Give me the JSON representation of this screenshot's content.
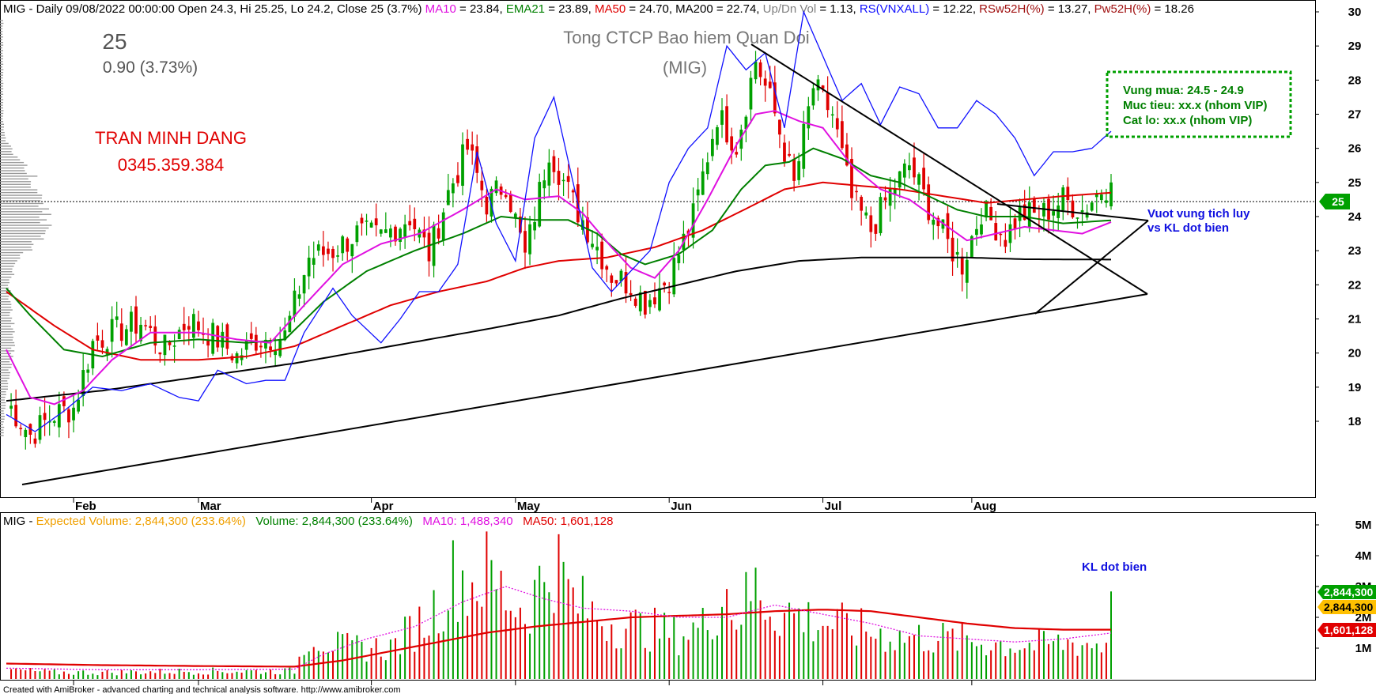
{
  "header": {
    "segments": [
      {
        "text": "MIG - Daily 09/08/2022 00:00:00 Open 24.3, Hi 25.25, Lo 24.2, Close 25 (3.7%) ",
        "color": "#000000"
      },
      {
        "text": "MA10",
        "color": "#e010e0"
      },
      {
        "text": " = 23.84, ",
        "color": "#000000"
      },
      {
        "text": "EMA21",
        "color": "#008000"
      },
      {
        "text": " = 23.89, ",
        "color": "#000000"
      },
      {
        "text": "MA50",
        "color": "#e00000"
      },
      {
        "text": " = 24.70, MA200 = 22.74, ",
        "color": "#000000"
      },
      {
        "text": "Up/Dn Vol",
        "color": "#808080"
      },
      {
        "text": " = 1.13, ",
        "color": "#000000"
      },
      {
        "text": "RS(VNXALL)",
        "color": "#1010ff"
      },
      {
        "text": " = 12.22, ",
        "color": "#000000"
      },
      {
        "text": "RSw52H(%)",
        "color": "#a01010"
      },
      {
        "text": " = 13.27, ",
        "color": "#000000"
      },
      {
        "text": "Pw52H(%)",
        "color": "#a01010"
      },
      {
        "text": " = 18.26",
        "color": "#000000"
      }
    ]
  },
  "price_block": {
    "price": "25",
    "change": "0.90 (3.73%)"
  },
  "company": {
    "name": "Tong CTCP Bao hiem Quan Doi",
    "ticker": "(MIG)"
  },
  "author": {
    "name": "TRAN MINH DANG",
    "phone": "0345.359.384"
  },
  "trade_box": {
    "buy_zone": "Vung mua: 24.5 - 24.9",
    "target": "Muc tieu: xx.x (nhom VIP)",
    "stop_loss": "Cat lo: xx.x (nhom VIP)"
  },
  "annotations": {
    "breakout_line1": "Vuot vung tich luy",
    "breakout_line2": "vs KL dot bien",
    "volume_note": "KL dot bien"
  },
  "price_tag": "25",
  "volume_header": {
    "segments": [
      {
        "text": "MIG - ",
        "color": "#000000"
      },
      {
        "text": "Expected Volume: 2,844,300 (233.64%)",
        "color": "#f0a000"
      },
      {
        "text": "   ",
        "color": "#000000"
      },
      {
        "text": "Volume: 2,844,300 (233.64%)",
        "color": "#008000"
      },
      {
        "text": "   ",
        "color": "#000000"
      },
      {
        "text": "MA10: 1,488,340",
        "color": "#e010e0"
      },
      {
        "text": "   ",
        "color": "#000000"
      },
      {
        "text": "MA50: 1,601,128",
        "color": "#e00000"
      }
    ]
  },
  "volume_tags": [
    {
      "label": "2,844,300",
      "bg": "#00a000",
      "fg": "#ffffff"
    },
    {
      "label": "2,844,300",
      "bg": "#ffc000",
      "fg": "#000000"
    },
    {
      "label": "1,601,128",
      "bg": "#e00000",
      "fg": "#ffffff"
    }
  ],
  "footer": "Created with AmiBroker - advanced charting and technical analysis software. http://www.amibroker.com",
  "colors": {
    "up": "#00a000",
    "down": "#e00000",
    "ma10": "#e010e0",
    "ema21": "#008000",
    "ma50": "#e00000",
    "ma200": "#000000",
    "rs": "#1010ff",
    "vol_ma10": "#e010e0"
  },
  "chart_data": {
    "type": "candlestick",
    "y_ticks": [
      "18",
      "19",
      "20",
      "21",
      "22",
      "23",
      "24",
      "25",
      "26",
      "27",
      "28",
      "29",
      "30"
    ],
    "ylim": [
      17.4,
      30.3
    ],
    "x_month_labels": [
      "Feb",
      "Mar",
      "Apr",
      "May",
      "Jun",
      "Jul",
      "Aug"
    ],
    "last_close": 25,
    "volume_y_ticks": [
      "1M",
      "2M",
      "3M",
      "4M",
      "5M"
    ],
    "volume_ylim": [
      0,
      5.0
    ],
    "volume_unit": "M",
    "keypoints": {
      "close": [
        [
          0,
          18.6
        ],
        [
          5,
          17.6
        ],
        [
          10,
          18.2
        ],
        [
          14,
          18.4
        ],
        [
          18,
          20.3
        ],
        [
          22,
          20.6
        ],
        [
          28,
          20.9
        ],
        [
          33,
          20.1
        ],
        [
          38,
          21.0
        ],
        [
          44,
          20.4
        ],
        [
          48,
          19.9
        ],
        [
          52,
          20.4
        ],
        [
          58,
          20.5
        ],
        [
          63,
          22.8
        ],
        [
          68,
          23.0
        ],
        [
          73,
          23.5
        ],
        [
          78,
          23.4
        ],
        [
          84,
          24.0
        ],
        [
          88,
          22.9
        ],
        [
          92,
          24.7
        ],
        [
          96,
          26.0
        ],
        [
          100,
          24.4
        ],
        [
          104,
          25.0
        ],
        [
          108,
          22.8
        ],
        [
          113,
          26.0
        ],
        [
          118,
          24.4
        ],
        [
          122,
          23.4
        ],
        [
          126,
          22.3
        ],
        [
          130,
          22.0
        ],
        [
          133,
          21.5
        ],
        [
          138,
          22.2
        ],
        [
          143,
          24.0
        ],
        [
          148,
          27.0
        ],
        [
          152,
          26.1
        ],
        [
          156,
          28.6
        ],
        [
          160,
          27.0
        ],
        [
          164,
          24.9
        ],
        [
          168,
          27.8
        ],
        [
          172,
          27.0
        ],
        [
          176,
          24.5
        ],
        [
          180,
          23.6
        ],
        [
          184,
          24.7
        ],
        [
          188,
          25.5
        ],
        [
          192,
          24.3
        ],
        [
          196,
          23.2
        ],
        [
          199,
          22.6
        ],
        [
          203,
          24.2
        ],
        [
          208,
          23.4
        ],
        [
          211,
          24.1
        ],
        [
          215,
          24.0
        ],
        [
          220,
          24.5
        ],
        [
          224,
          24.2
        ],
        [
          228,
          24.8
        ],
        [
          230,
          25.0
        ]
      ],
      "ma10": [
        [
          0,
          20.1
        ],
        [
          5,
          18.7
        ],
        [
          10,
          18.5
        ],
        [
          16,
          18.9
        ],
        [
          22,
          19.8
        ],
        [
          30,
          20.6
        ],
        [
          40,
          20.6
        ],
        [
          48,
          20.4
        ],
        [
          55,
          20.3
        ],
        [
          62,
          21.4
        ],
        [
          70,
          22.6
        ],
        [
          78,
          23.2
        ],
        [
          86,
          23.5
        ],
        [
          95,
          24.2
        ],
        [
          102,
          24.8
        ],
        [
          108,
          24.5
        ],
        [
          115,
          24.6
        ],
        [
          120,
          24.1
        ],
        [
          126,
          23.1
        ],
        [
          130,
          22.5
        ],
        [
          135,
          22.2
        ],
        [
          140,
          23.0
        ],
        [
          146,
          24.5
        ],
        [
          152,
          26.1
        ],
        [
          156,
          27.0
        ],
        [
          160,
          27.1
        ],
        [
          165,
          26.8
        ],
        [
          170,
          26.6
        ],
        [
          176,
          25.5
        ],
        [
          182,
          24.8
        ],
        [
          188,
          24.5
        ],
        [
          195,
          23.8
        ],
        [
          200,
          23.3
        ],
        [
          206,
          23.5
        ],
        [
          212,
          23.7
        ],
        [
          218,
          23.6
        ],
        [
          224,
          23.5
        ],
        [
          230,
          23.84
        ]
      ],
      "ema21": [
        [
          0,
          21.9
        ],
        [
          5,
          21.1
        ],
        [
          12,
          20.1
        ],
        [
          20,
          19.9
        ],
        [
          30,
          20.3
        ],
        [
          40,
          20.4
        ],
        [
          50,
          20.3
        ],
        [
          58,
          20.4
        ],
        [
          66,
          21.5
        ],
        [
          75,
          22.4
        ],
        [
          85,
          23.0
        ],
        [
          95,
          23.5
        ],
        [
          103,
          24.0
        ],
        [
          110,
          23.9
        ],
        [
          117,
          23.9
        ],
        [
          123,
          23.5
        ],
        [
          128,
          22.9
        ],
        [
          133,
          22.6
        ],
        [
          140,
          22.9
        ],
        [
          147,
          23.6
        ],
        [
          153,
          24.8
        ],
        [
          158,
          25.5
        ],
        [
          163,
          25.6
        ],
        [
          168,
          26.0
        ],
        [
          174,
          25.7
        ],
        [
          180,
          25.2
        ],
        [
          186,
          25.0
        ],
        [
          192,
          24.6
        ],
        [
          198,
          24.2
        ],
        [
          204,
          24.0
        ],
        [
          212,
          24.0
        ],
        [
          220,
          23.8
        ],
        [
          230,
          23.89
        ]
      ],
      "ma50": [
        [
          0,
          21.8
        ],
        [
          10,
          20.8
        ],
        [
          18,
          20.1
        ],
        [
          28,
          19.8
        ],
        [
          40,
          19.8
        ],
        [
          50,
          19.9
        ],
        [
          60,
          20.2
        ],
        [
          70,
          20.8
        ],
        [
          80,
          21.4
        ],
        [
          90,
          21.8
        ],
        [
          100,
          22.1
        ],
        [
          108,
          22.5
        ],
        [
          115,
          22.7
        ],
        [
          125,
          22.8
        ],
        [
          135,
          23.1
        ],
        [
          145,
          23.6
        ],
        [
          155,
          24.3
        ],
        [
          162,
          24.8
        ],
        [
          170,
          25.0
        ],
        [
          178,
          24.9
        ],
        [
          186,
          24.8
        ],
        [
          195,
          24.6
        ],
        [
          204,
          24.4
        ],
        [
          212,
          24.5
        ],
        [
          220,
          24.6
        ],
        [
          230,
          24.7
        ]
      ],
      "ma200": [
        [
          0,
          18.6
        ],
        [
          20,
          18.9
        ],
        [
          40,
          19.3
        ],
        [
          60,
          19.7
        ],
        [
          80,
          20.2
        ],
        [
          100,
          20.7
        ],
        [
          115,
          21.1
        ],
        [
          128,
          21.6
        ],
        [
          140,
          22.0
        ],
        [
          152,
          22.4
        ],
        [
          165,
          22.7
        ],
        [
          178,
          22.8
        ],
        [
          190,
          22.8
        ],
        [
          200,
          22.8
        ],
        [
          212,
          22.75
        ],
        [
          230,
          22.74
        ]
      ],
      "rs": [
        [
          0,
          18.2
        ],
        [
          6,
          17.7
        ],
        [
          12,
          18.3
        ],
        [
          18,
          19.0
        ],
        [
          24,
          18.9
        ],
        [
          30,
          19.1
        ],
        [
          36,
          18.7
        ],
        [
          40,
          18.6
        ],
        [
          44,
          19.5
        ],
        [
          50,
          19.1
        ],
        [
          54,
          19.2
        ],
        [
          58,
          19.2
        ],
        [
          62,
          20.6
        ],
        [
          68,
          21.9
        ],
        [
          72,
          21.1
        ],
        [
          78,
          20.3
        ],
        [
          82,
          21.0
        ],
        [
          86,
          21.8
        ],
        [
          90,
          21.8
        ],
        [
          94,
          22.6
        ],
        [
          98,
          25.9
        ],
        [
          102,
          23.8
        ],
        [
          106,
          22.7
        ],
        [
          110,
          26.3
        ],
        [
          114,
          27.5
        ],
        [
          118,
          25.0
        ],
        [
          122,
          22.5
        ],
        [
          126,
          21.8
        ],
        [
          130,
          22.4
        ],
        [
          134,
          23.0
        ],
        [
          138,
          25.0
        ],
        [
          142,
          26.0
        ],
        [
          146,
          26.6
        ],
        [
          150,
          29.0
        ],
        [
          154,
          28.3
        ],
        [
          158,
          28.8
        ],
        [
          162,
          26.6
        ],
        [
          166,
          30.0
        ],
        [
          170,
          28.7
        ],
        [
          174,
          27.4
        ],
        [
          178,
          27.9
        ],
        [
          182,
          26.7
        ],
        [
          186,
          27.8
        ],
        [
          190,
          27.6
        ],
        [
          194,
          26.6
        ],
        [
          198,
          26.6
        ],
        [
          202,
          27.4
        ],
        [
          206,
          27.0
        ],
        [
          210,
          26.3
        ],
        [
          214,
          25.2
        ],
        [
          218,
          25.9
        ],
        [
          222,
          25.9
        ],
        [
          226,
          26.0
        ],
        [
          230,
          26.5
        ]
      ],
      "volume": [
        [
          0,
          0.35
        ],
        [
          10,
          0.25
        ],
        [
          20,
          0.25
        ],
        [
          40,
          0.3
        ],
        [
          60,
          0.3
        ],
        [
          63,
          1.8
        ],
        [
          66,
          1.5
        ],
        [
          70,
          1.2
        ],
        [
          80,
          1.2
        ],
        [
          88,
          2.4
        ],
        [
          94,
          4.1
        ],
        [
          96,
          3.6
        ],
        [
          100,
          4.0
        ],
        [
          104,
          3.2
        ],
        [
          108,
          2.6
        ],
        [
          114,
          4.6
        ],
        [
          118,
          3.0
        ],
        [
          122,
          2.5
        ],
        [
          126,
          2.2
        ],
        [
          130,
          2.0
        ],
        [
          134,
          1.9
        ],
        [
          140,
          1.7
        ],
        [
          145,
          2.0
        ],
        [
          150,
          3.4
        ],
        [
          152,
          2.4
        ],
        [
          156,
          3.5
        ],
        [
          160,
          2.6
        ],
        [
          164,
          2.5
        ],
        [
          168,
          2.2
        ],
        [
          172,
          2.1
        ],
        [
          176,
          1.9
        ],
        [
          180,
          1.8
        ],
        [
          186,
          1.6
        ],
        [
          192,
          1.6
        ],
        [
          198,
          1.5
        ],
        [
          204,
          1.4
        ],
        [
          210,
          1.3
        ],
        [
          216,
          1.3
        ],
        [
          222,
          1.4
        ],
        [
          228,
          1.3
        ],
        [
          229,
          1.4
        ],
        [
          230,
          2.84
        ]
      ],
      "vol_ma10": [
        [
          0,
          0.35
        ],
        [
          20,
          0.3
        ],
        [
          40,
          0.3
        ],
        [
          60,
          0.32
        ],
        [
          66,
          0.8
        ],
        [
          75,
          1.3
        ],
        [
          85,
          1.7
        ],
        [
          95,
          2.5
        ],
        [
          104,
          3.0
        ],
        [
          112,
          2.6
        ],
        [
          120,
          2.3
        ],
        [
          130,
          2.2
        ],
        [
          140,
          2.0
        ],
        [
          150,
          2.0
        ],
        [
          160,
          2.4
        ],
        [
          170,
          2.1
        ],
        [
          180,
          1.8
        ],
        [
          190,
          1.4
        ],
        [
          200,
          1.3
        ],
        [
          210,
          1.2
        ],
        [
          220,
          1.3
        ],
        [
          230,
          1.49
        ]
      ],
      "vol_ma50": [
        [
          0,
          0.5
        ],
        [
          20,
          0.45
        ],
        [
          40,
          0.42
        ],
        [
          60,
          0.4
        ],
        [
          70,
          0.6
        ],
        [
          80,
          0.9
        ],
        [
          90,
          1.2
        ],
        [
          100,
          1.5
        ],
        [
          110,
          1.7
        ],
        [
          120,
          1.85
        ],
        [
          130,
          2.0
        ],
        [
          140,
          2.05
        ],
        [
          150,
          2.1
        ],
        [
          160,
          2.2
        ],
        [
          170,
          2.25
        ],
        [
          180,
          2.2
        ],
        [
          190,
          2.0
        ],
        [
          200,
          1.8
        ],
        [
          210,
          1.65
        ],
        [
          220,
          1.6
        ],
        [
          230,
          1.6
        ]
      ]
    }
  }
}
